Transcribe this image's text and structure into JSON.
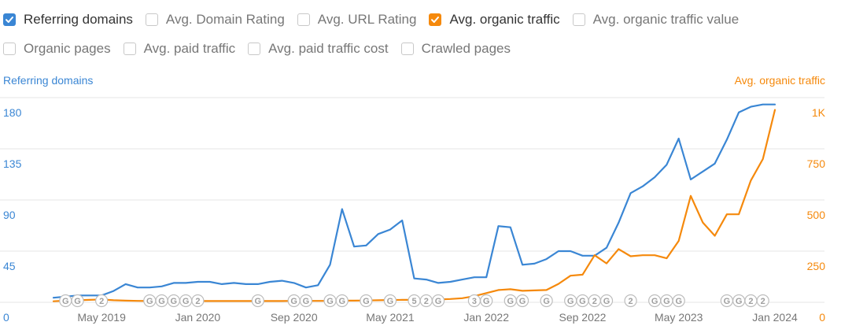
{
  "colors": {
    "blue": "#3a86d4",
    "orange": "#f5890c",
    "grid": "#e6e6e6",
    "text_muted": "#777777",
    "x_label": "#777777",
    "event_stroke": "#bdbdbd",
    "event_text": "#9e9e9e"
  },
  "checkboxes": [
    {
      "label": "Referring domains",
      "checked": true,
      "color": "#3a86d4"
    },
    {
      "label": "Avg. Domain Rating",
      "checked": false
    },
    {
      "label": "Avg. URL Rating",
      "checked": false
    },
    {
      "label": "Avg. organic traffic",
      "checked": true,
      "color": "#f5890c"
    },
    {
      "label": "Avg. organic traffic value",
      "checked": false
    },
    {
      "label": "Organic pages",
      "checked": false
    },
    {
      "label": "Avg. paid traffic",
      "checked": false
    },
    {
      "label": "Avg. paid traffic cost",
      "checked": false
    },
    {
      "label": "Crawled pages",
      "checked": false
    }
  ],
  "chart_data": {
    "type": "line",
    "left_axis": {
      "label": "Referring domains",
      "ticks": [
        "0",
        "45",
        "90",
        "135",
        "180"
      ],
      "range": [
        0,
        180
      ]
    },
    "right_axis": {
      "label": "Avg. organic traffic",
      "ticks": [
        "0",
        "250",
        "500",
        "750",
        "1K"
      ],
      "range": [
        0,
        1000
      ]
    },
    "x_labels": [
      "May 2019",
      "Jan 2020",
      "Sep 2020",
      "May 2021",
      "Jan 2022",
      "Sep 2022",
      "May 2023",
      "Jan 2024"
    ],
    "x_range": [
      "2019-01",
      "2024-01"
    ],
    "series": [
      {
        "name": "Referring domains",
        "axis": "left",
        "color": "#3a86d4",
        "x": [
          "2019-01",
          "2019-02",
          "2019-03",
          "2019-04",
          "2019-05",
          "2019-06",
          "2019-07",
          "2019-08",
          "2019-09",
          "2019-10",
          "2019-11",
          "2019-12",
          "2020-01",
          "2020-02",
          "2020-03",
          "2020-04",
          "2020-05",
          "2020-06",
          "2020-07",
          "2020-08",
          "2020-09",
          "2020-10",
          "2020-11",
          "2020-12",
          "2021-01",
          "2021-02",
          "2021-03",
          "2021-04",
          "2021-05",
          "2021-06",
          "2021-07",
          "2021-08",
          "2021-09",
          "2021-10",
          "2021-11",
          "2021-12",
          "2022-01",
          "2022-02",
          "2022-03",
          "2022-04",
          "2022-05",
          "2022-06",
          "2022-07",
          "2022-08",
          "2022-09",
          "2022-10",
          "2022-11",
          "2022-12",
          "2023-01",
          "2023-02",
          "2023-03",
          "2023-04",
          "2023-05",
          "2023-06",
          "2023-07",
          "2023-08",
          "2023-09",
          "2023-10",
          "2023-11",
          "2023-12",
          "2024-01"
        ],
        "values": [
          4,
          5,
          6,
          6,
          6,
          10,
          16,
          13,
          13,
          14,
          17,
          17,
          18,
          18,
          16,
          17,
          16,
          16,
          18,
          19,
          17,
          13,
          15,
          33,
          82,
          49,
          50,
          60,
          64,
          72,
          21,
          20,
          17,
          18,
          20,
          22,
          22,
          67,
          66,
          33,
          34,
          38,
          45,
          45,
          41,
          41,
          48,
          70,
          96,
          102,
          110,
          121,
          144,
          108,
          115,
          122,
          143,
          167,
          172,
          174,
          174
        ],
        "note": "Jan 2024 value read from right end of line; line ends just before Jan 2024 label"
      },
      {
        "name": "Avg. organic traffic",
        "axis": "right",
        "color": "#f5890c",
        "x": [
          "2019-01",
          "2019-02",
          "2019-03",
          "2019-04",
          "2019-05",
          "2019-06",
          "2019-07",
          "2019-08",
          "2019-09",
          "2019-10",
          "2019-11",
          "2019-12",
          "2020-01",
          "2020-02",
          "2020-03",
          "2020-04",
          "2020-05",
          "2020-06",
          "2020-07",
          "2020-08",
          "2020-09",
          "2020-10",
          "2020-11",
          "2020-12",
          "2021-01",
          "2021-02",
          "2021-03",
          "2021-04",
          "2021-05",
          "2021-06",
          "2021-07",
          "2021-08",
          "2021-09",
          "2021-10",
          "2021-11",
          "2021-12",
          "2022-01",
          "2022-02",
          "2022-03",
          "2022-04",
          "2022-05",
          "2022-06",
          "2022-07",
          "2022-08",
          "2022-09",
          "2022-10",
          "2022-11",
          "2022-12",
          "2023-01",
          "2023-02",
          "2023-03",
          "2023-04",
          "2023-05",
          "2023-06",
          "2023-07",
          "2023-08",
          "2023-09",
          "2023-10",
          "2023-11",
          "2023-12",
          "2024-01"
        ],
        "values": [
          5,
          8,
          10,
          12,
          14,
          10,
          8,
          7,
          6,
          6,
          6,
          6,
          6,
          6,
          6,
          6,
          6,
          6,
          6,
          6,
          7,
          7,
          7,
          7,
          8,
          8,
          9,
          10,
          11,
          12,
          12,
          12,
          14,
          16,
          20,
          30,
          45,
          60,
          64,
          56,
          58,
          60,
          90,
          130,
          135,
          230,
          190,
          260,
          225,
          230,
          230,
          215,
          300,
          520,
          390,
          325,
          430,
          430,
          595,
          700,
          940
        ]
      }
    ],
    "events": [
      {
        "x": "2019-02",
        "label": "G"
      },
      {
        "x": "2019-03",
        "label": "G"
      },
      {
        "x": "2019-05",
        "label": "2"
      },
      {
        "x": "2019-09",
        "label": "G"
      },
      {
        "x": "2019-10",
        "label": "G"
      },
      {
        "x": "2019-11",
        "label": "G"
      },
      {
        "x": "2019-12",
        "label": "G"
      },
      {
        "x": "2020-01",
        "label": "2"
      },
      {
        "x": "2020-06",
        "label": "G"
      },
      {
        "x": "2020-09",
        "label": "G"
      },
      {
        "x": "2020-10",
        "label": "G"
      },
      {
        "x": "2020-12",
        "label": "G"
      },
      {
        "x": "2021-01",
        "label": "G"
      },
      {
        "x": "2021-03",
        "label": "G"
      },
      {
        "x": "2021-05",
        "label": "G"
      },
      {
        "x": "2021-07",
        "label": "5"
      },
      {
        "x": "2021-08",
        "label": "2"
      },
      {
        "x": "2021-09",
        "label": "G"
      },
      {
        "x": "2021-12",
        "label": "3"
      },
      {
        "x": "2022-01",
        "label": "G"
      },
      {
        "x": "2022-03",
        "label": "G"
      },
      {
        "x": "2022-04",
        "label": "G"
      },
      {
        "x": "2022-06",
        "label": "G"
      },
      {
        "x": "2022-08",
        "label": "G"
      },
      {
        "x": "2022-09",
        "label": "G"
      },
      {
        "x": "2022-10",
        "label": "2"
      },
      {
        "x": "2022-11",
        "label": "G"
      },
      {
        "x": "2023-01",
        "label": "2"
      },
      {
        "x": "2023-03",
        "label": "G"
      },
      {
        "x": "2023-04",
        "label": "G"
      },
      {
        "x": "2023-05",
        "label": "G"
      },
      {
        "x": "2023-09",
        "label": "G"
      },
      {
        "x": "2023-10",
        "label": "G"
      },
      {
        "x": "2023-11",
        "label": "2"
      },
      {
        "x": "2023-12",
        "label": "2"
      }
    ]
  }
}
